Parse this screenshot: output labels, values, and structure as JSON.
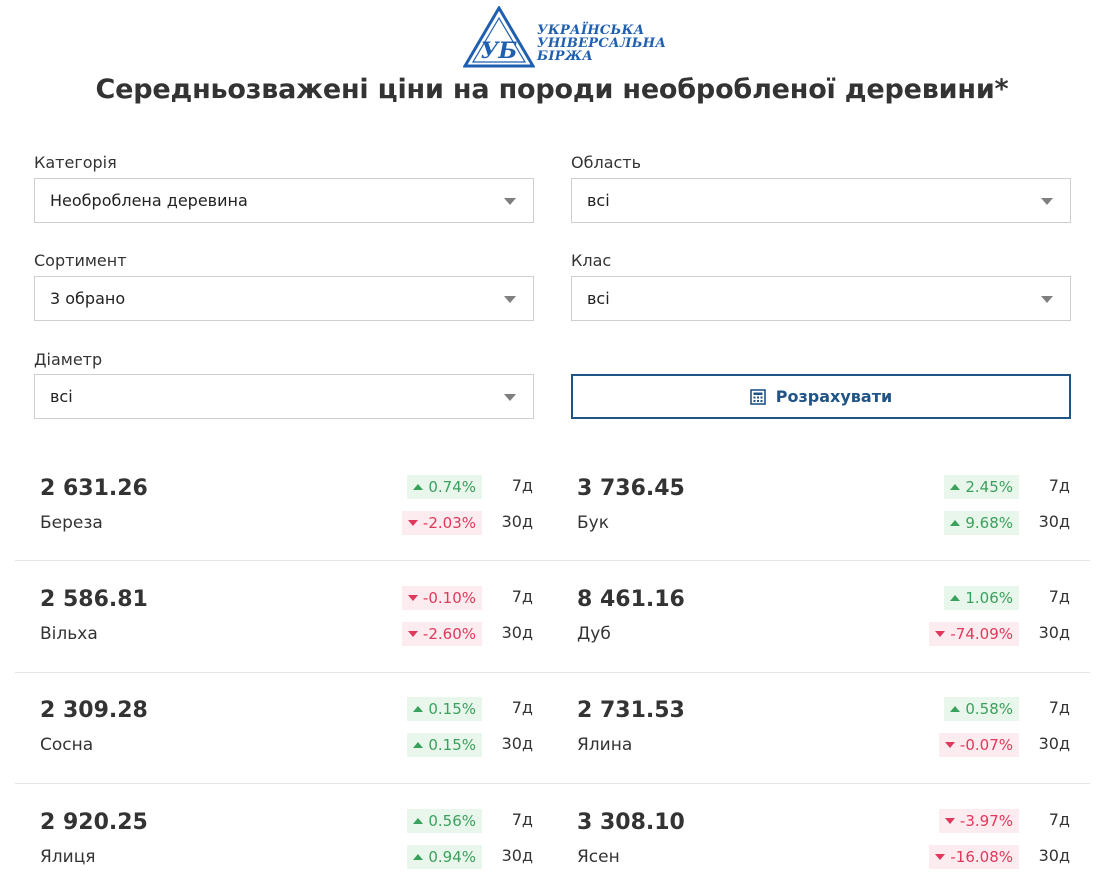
{
  "logo": {
    "mark": "УБ",
    "lines": [
      "УКРАЇНСЬКА",
      "УНІВЕРСАЛЬНА",
      "БІРЖА"
    ]
  },
  "title": "Середньозважені ціни на породи необробленої деревини*",
  "filters": {
    "category": {
      "label": "Категорія",
      "value": "Необроблена деревина"
    },
    "region": {
      "label": "Область",
      "value": "всі"
    },
    "assortment": {
      "label": "Сортимент",
      "value": "3 обрано"
    },
    "class": {
      "label": "Клас",
      "value": "всі"
    },
    "diameter": {
      "label": "Діаметр",
      "value": "всі"
    }
  },
  "calculate_button": "Розрахувати",
  "colors": {
    "up": "#3aa15c",
    "down": "#e0375a",
    "accent": "#215486"
  },
  "prices": [
    {
      "price": "2 631.26",
      "name": "Береза",
      "change7": {
        "value": "0.74%",
        "dir": "up"
      },
      "period7": "7д",
      "change30": {
        "value": "-2.03%",
        "dir": "down"
      },
      "period30": "30д"
    },
    {
      "price": "3 736.45",
      "name": "Бук",
      "change7": {
        "value": "2.45%",
        "dir": "up"
      },
      "period7": "7д",
      "change30": {
        "value": "9.68%",
        "dir": "up"
      },
      "period30": "30д"
    },
    {
      "price": "2 586.81",
      "name": "Вільха",
      "change7": {
        "value": "-0.10%",
        "dir": "down"
      },
      "period7": "7д",
      "change30": {
        "value": "-2.60%",
        "dir": "down"
      },
      "period30": "30д"
    },
    {
      "price": "8 461.16",
      "name": "Дуб",
      "change7": {
        "value": "1.06%",
        "dir": "up"
      },
      "period7": "7д",
      "change30": {
        "value": "-74.09%",
        "dir": "down"
      },
      "period30": "30д"
    },
    {
      "price": "2 309.28",
      "name": "Сосна",
      "change7": {
        "value": "0.15%",
        "dir": "up"
      },
      "period7": "7д",
      "change30": {
        "value": "0.15%",
        "dir": "up"
      },
      "period30": "30д"
    },
    {
      "price": "2 731.53",
      "name": "Ялина",
      "change7": {
        "value": "0.58%",
        "dir": "up"
      },
      "period7": "7д",
      "change30": {
        "value": "-0.07%",
        "dir": "down"
      },
      "period30": "30д"
    },
    {
      "price": "2 920.25",
      "name": "Ялиця",
      "change7": {
        "value": "0.56%",
        "dir": "up"
      },
      "period7": "7д",
      "change30": {
        "value": "0.94%",
        "dir": "up"
      },
      "period30": "30д"
    },
    {
      "price": "3 308.10",
      "name": "Ясен",
      "change7": {
        "value": "-3.97%",
        "dir": "down"
      },
      "period7": "7д",
      "change30": {
        "value": "-16.08%",
        "dir": "down"
      },
      "period30": "30д"
    }
  ]
}
